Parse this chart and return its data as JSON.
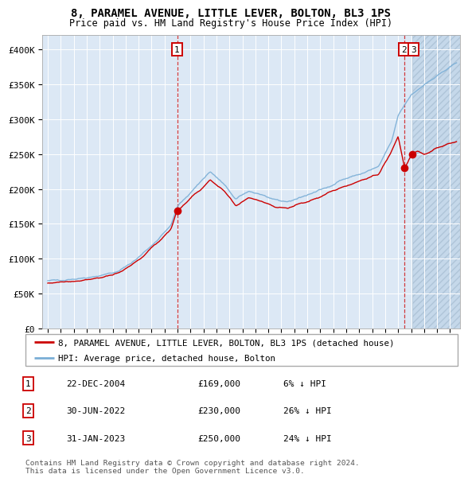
{
  "title": "8, PARAMEL AVENUE, LITTLE LEVER, BOLTON, BL3 1PS",
  "subtitle": "Price paid vs. HM Land Registry's House Price Index (HPI)",
  "ylim": [
    0,
    420000
  ],
  "yticks": [
    0,
    50000,
    100000,
    150000,
    200000,
    250000,
    300000,
    350000,
    400000
  ],
  "ytick_labels": [
    "£0",
    "£50K",
    "£100K",
    "£150K",
    "£200K",
    "£250K",
    "£300K",
    "£350K",
    "£400K"
  ],
  "xlim_start": 1994.6,
  "xlim_end": 2026.8,
  "x_year_start": 1995,
  "x_year_end": 2027,
  "hpi_color": "#7aaed6",
  "sale_color": "#cc0000",
  "bg_color": "#dce8f5",
  "grid_color": "#ffffff",
  "sale1_date": 2004.97,
  "sale1_price": 169000,
  "sale2_date": 2022.5,
  "sale2_price": 230000,
  "sale3_date": 2023.08,
  "sale3_price": 250000,
  "future_start": 2023.08,
  "legend_label_sale": "8, PARAMEL AVENUE, LITTLE LEVER, BOLTON, BL3 1PS (detached house)",
  "legend_label_hpi": "HPI: Average price, detached house, Bolton",
  "table_entries": [
    {
      "num": "1",
      "date": "22-DEC-2004",
      "price": "£169,000",
      "pct": "6% ↓ HPI"
    },
    {
      "num": "2",
      "date": "30-JUN-2022",
      "price": "£230,000",
      "pct": "26% ↓ HPI"
    },
    {
      "num": "3",
      "date": "31-JAN-2023",
      "price": "£250,000",
      "pct": "24% ↓ HPI"
    }
  ],
  "footnote": "Contains HM Land Registry data © Crown copyright and database right 2024.\nThis data is licensed under the Open Government Licence v3.0."
}
